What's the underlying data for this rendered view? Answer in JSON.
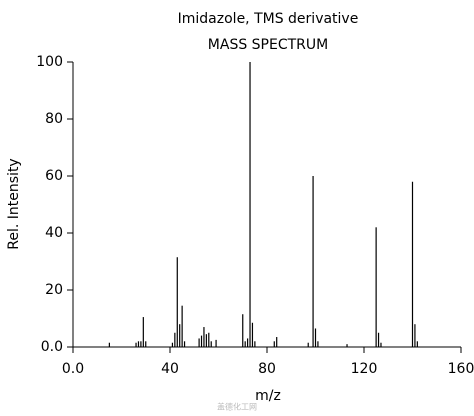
{
  "chart_data": {
    "type": "stick",
    "title": "Imidazole, TMS derivative",
    "subtitle": "MASS SPECTRUM",
    "x_label": "m/z",
    "y_label": "Rel. Intensity",
    "watermark": "盖德化工网",
    "color": "#000000",
    "x": [
      15,
      26,
      27,
      28,
      29,
      30,
      41,
      42,
      43,
      44,
      45,
      46,
      52,
      53,
      54,
      55,
      56,
      57,
      59,
      70,
      71,
      72,
      73,
      74,
      75,
      83,
      84,
      97,
      99,
      100,
      101,
      113,
      125,
      126,
      127,
      140,
      141,
      142
    ],
    "values": [
      1.5,
      1.5,
      2,
      2,
      10.5,
      2,
      1.5,
      5,
      31.5,
      8,
      14.5,
      2,
      3,
      4,
      7,
      4.5,
      5,
      2,
      2.5,
      11.5,
      2,
      3,
      100,
      8.5,
      2,
      2,
      3.5,
      1.5,
      60,
      6.5,
      2,
      1,
      42,
      5,
      1.5,
      58,
      8,
      2
    ],
    "xlim": [
      0,
      160
    ],
    "ylim": [
      0,
      100
    ],
    "xticks": [
      {
        "value": 0,
        "label": "0.0"
      },
      40,
      80,
      120,
      160
    ],
    "yticks": [
      {
        "value": 0,
        "label": "0.0"
      },
      20,
      40,
      60,
      80,
      100
    ]
  }
}
